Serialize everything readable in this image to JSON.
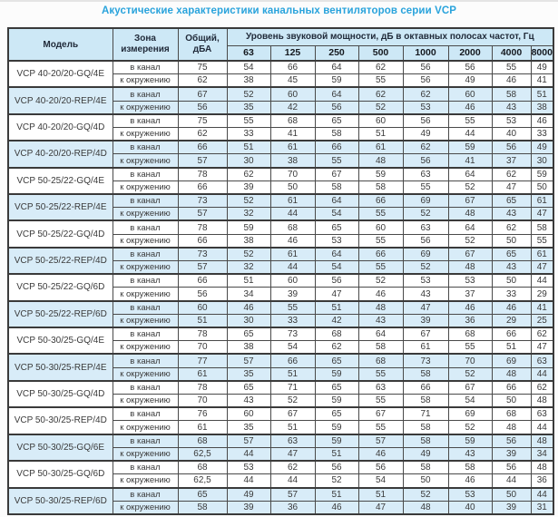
{
  "title": "Акустические характеристики канальных вентиляторов  серии VCP",
  "table": {
    "headers": {
      "model": "Модель",
      "zone": "Зона\nизмерения",
      "total": "Общий,\nдБА",
      "octave": "Уровень звуковой мощности, дБ в октавных полосах частот, Гц",
      "frequencies": [
        "63",
        "125",
        "250",
        "500",
        "1000",
        "2000",
        "4000",
        "8000"
      ]
    },
    "zone_labels": [
      "в канал",
      "к окружению"
    ],
    "rows": [
      {
        "model": "VCP 40-20/20-GQ/4E",
        "shaded": false,
        "duct": {
          "total": "75",
          "bands": [
            "54",
            "66",
            "64",
            "62",
            "56",
            "56",
            "55",
            "49"
          ]
        },
        "ambient": {
          "total": "62",
          "bands": [
            "38",
            "45",
            "59",
            "55",
            "56",
            "49",
            "46",
            "41"
          ]
        }
      },
      {
        "model": "VCP 40-20/20-REP/4E",
        "shaded": true,
        "duct": {
          "total": "67",
          "bands": [
            "52",
            "60",
            "64",
            "62",
            "62",
            "60",
            "58",
            "51"
          ]
        },
        "ambient": {
          "total": "56",
          "bands": [
            "35",
            "42",
            "56",
            "52",
            "53",
            "46",
            "43",
            "38"
          ]
        }
      },
      {
        "model": "VCP 40-20/20-GQ/4D",
        "shaded": false,
        "duct": {
          "total": "75",
          "bands": [
            "55",
            "68",
            "65",
            "60",
            "56",
            "55",
            "53",
            "46"
          ]
        },
        "ambient": {
          "total": "62",
          "bands": [
            "33",
            "41",
            "58",
            "51",
            "49",
            "44",
            "40",
            "33"
          ]
        }
      },
      {
        "model": "VCP 40-20/20-REP/4D",
        "shaded": true,
        "duct": {
          "total": "66",
          "bands": [
            "51",
            "61",
            "66",
            "61",
            "62",
            "59",
            "56",
            "49"
          ]
        },
        "ambient": {
          "total": "57",
          "bands": [
            "30",
            "38",
            "55",
            "48",
            "56",
            "41",
            "37",
            "30"
          ]
        }
      },
      {
        "model": "VCP 50-25/22-GQ/4E",
        "shaded": false,
        "duct": {
          "total": "78",
          "bands": [
            "62",
            "70",
            "67",
            "59",
            "63",
            "64",
            "62",
            "59"
          ]
        },
        "ambient": {
          "total": "66",
          "bands": [
            "39",
            "50",
            "58",
            "58",
            "55",
            "52",
            "47",
            "50"
          ]
        }
      },
      {
        "model": "VCP 50-25/22-REP/4E",
        "shaded": true,
        "duct": {
          "total": "73",
          "bands": [
            "52",
            "61",
            "64",
            "66",
            "69",
            "67",
            "65",
            "61"
          ]
        },
        "ambient": {
          "total": "57",
          "bands": [
            "32",
            "44",
            "54",
            "55",
            "52",
            "48",
            "43",
            "47"
          ]
        }
      },
      {
        "model": "VCP 50-25/22-GQ/4D",
        "shaded": false,
        "duct": {
          "total": "78",
          "bands": [
            "59",
            "68",
            "65",
            "60",
            "63",
            "64",
            "62",
            "58"
          ]
        },
        "ambient": {
          "total": "66",
          "bands": [
            "38",
            "46",
            "53",
            "55",
            "56",
            "52",
            "50",
            "55"
          ]
        }
      },
      {
        "model": "VCP 50-25/22-REP/4D",
        "shaded": true,
        "duct": {
          "total": "73",
          "bands": [
            "52",
            "61",
            "64",
            "66",
            "69",
            "67",
            "65",
            "61"
          ]
        },
        "ambient": {
          "total": "57",
          "bands": [
            "32",
            "44",
            "54",
            "55",
            "52",
            "48",
            "43",
            "47"
          ]
        }
      },
      {
        "model": "VCP 50-25/22-GQ/6D",
        "shaded": false,
        "duct": {
          "total": "66",
          "bands": [
            "51",
            "60",
            "56",
            "52",
            "53",
            "53",
            "50",
            "44"
          ]
        },
        "ambient": {
          "total": "56",
          "bands": [
            "34",
            "39",
            "47",
            "46",
            "43",
            "37",
            "33",
            "29"
          ]
        }
      },
      {
        "model": "VCP 50-25/22-REP/6D",
        "shaded": true,
        "duct": {
          "total": "60",
          "bands": [
            "46",
            "55",
            "51",
            "48",
            "47",
            "46",
            "46",
            "41"
          ]
        },
        "ambient": {
          "total": "51",
          "bands": [
            "30",
            "33",
            "42",
            "43",
            "39",
            "36",
            "29",
            "25"
          ]
        }
      },
      {
        "model": "VCP 50-30/25-GQ/4E",
        "shaded": false,
        "duct": {
          "total": "78",
          "bands": [
            "65",
            "73",
            "68",
            "64",
            "67",
            "68",
            "66",
            "62"
          ]
        },
        "ambient": {
          "total": "70",
          "bands": [
            "38",
            "54",
            "62",
            "58",
            "61",
            "55",
            "51",
            "47"
          ]
        }
      },
      {
        "model": "VCP 50-30/25-REP/4E",
        "shaded": true,
        "duct": {
          "total": "77",
          "bands": [
            "57",
            "66",
            "65",
            "68",
            "73",
            "70",
            "69",
            "63"
          ]
        },
        "ambient": {
          "total": "61",
          "bands": [
            "35",
            "51",
            "59",
            "55",
            "58",
            "52",
            "48",
            "44"
          ]
        }
      },
      {
        "model": "VCP 50-30/25-GQ/4D",
        "shaded": false,
        "duct": {
          "total": "78",
          "bands": [
            "65",
            "71",
            "65",
            "63",
            "66",
            "67",
            "66",
            "62"
          ]
        },
        "ambient": {
          "total": "70",
          "bands": [
            "43",
            "52",
            "59",
            "55",
            "58",
            "54",
            "50",
            "48"
          ]
        }
      },
      {
        "model": "VCP 50-30/25-REP/4D",
        "shaded": false,
        "duct": {
          "total": "76",
          "bands": [
            "60",
            "67",
            "65",
            "67",
            "71",
            "69",
            "68",
            "63"
          ]
        },
        "ambient": {
          "total": "61",
          "bands": [
            "35",
            "51",
            "59",
            "55",
            "58",
            "52",
            "48",
            "44"
          ]
        }
      },
      {
        "model": "VCP 50-30/25-GQ/6E",
        "shaded": true,
        "duct": {
          "total": "68",
          "bands": [
            "57",
            "63",
            "59",
            "57",
            "58",
            "59",
            "56",
            "48"
          ]
        },
        "ambient": {
          "total": "62,5",
          "bands": [
            "44",
            "47",
            "51",
            "46",
            "49",
            "43",
            "39",
            "34"
          ]
        }
      },
      {
        "model": "VCP 50-30/25-GQ/6D",
        "shaded": false,
        "duct": {
          "total": "68",
          "bands": [
            "53",
            "62",
            "56",
            "56",
            "58",
            "58",
            "56",
            "48"
          ]
        },
        "ambient": {
          "total": "62,5",
          "bands": [
            "44",
            "44",
            "52",
            "54",
            "50",
            "46",
            "44",
            "36"
          ]
        }
      },
      {
        "model": "VCP 50-30/25-REP/6D",
        "shaded": true,
        "duct": {
          "total": "65",
          "bands": [
            "49",
            "57",
            "51",
            "51",
            "52",
            "53",
            "50",
            "44"
          ]
        },
        "ambient": {
          "total": "58",
          "bands": [
            "39",
            "36",
            "46",
            "47",
            "48",
            "40",
            "39",
            "31"
          ]
        }
      }
    ]
  }
}
